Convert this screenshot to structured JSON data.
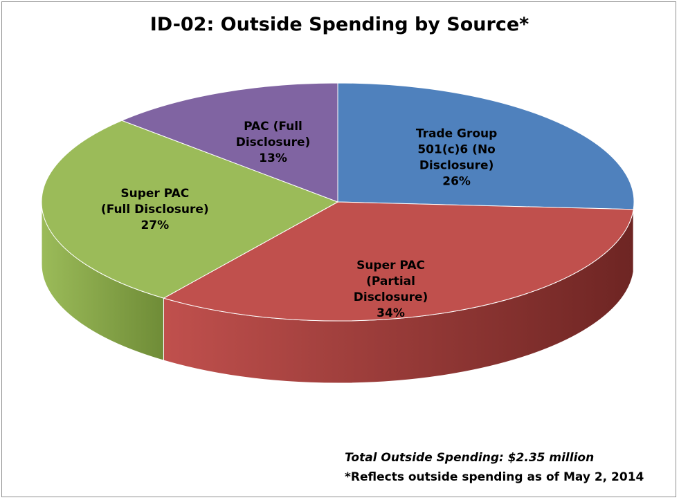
{
  "chart_data": {
    "type": "pie",
    "title": "ID-02: Outside Spending by Source*",
    "slices": [
      {
        "label_lines": [
          "Trade Group",
          "501(c)6 (No",
          "Disclosure)"
        ],
        "percent_label": "26%",
        "value": 26,
        "color": "#4f81bd",
        "side_color": "#2f4f77"
      },
      {
        "label_lines": [
          "Super PAC",
          "(Partial",
          "Disclosure)"
        ],
        "percent_label": "34%",
        "value": 34,
        "color": "#c0504d",
        "side_color": "#6e2523"
      },
      {
        "label_lines": [
          "Super PAC",
          "(Full Disclosure)"
        ],
        "percent_label": "27%",
        "value": 27,
        "color": "#9bbb59",
        "side_color": "#6f8c37"
      },
      {
        "label_lines": [
          "PAC (Full",
          "Disclosure)"
        ],
        "percent_label": "13%",
        "value": 13,
        "color": "#8064a2",
        "side_color": "#4f3a69"
      }
    ],
    "legend": "none"
  },
  "footnotes": {
    "total": "Total Outside Spending: $2.35 million",
    "as_of": "*Reflects outside spending as of May 2, 2014"
  }
}
